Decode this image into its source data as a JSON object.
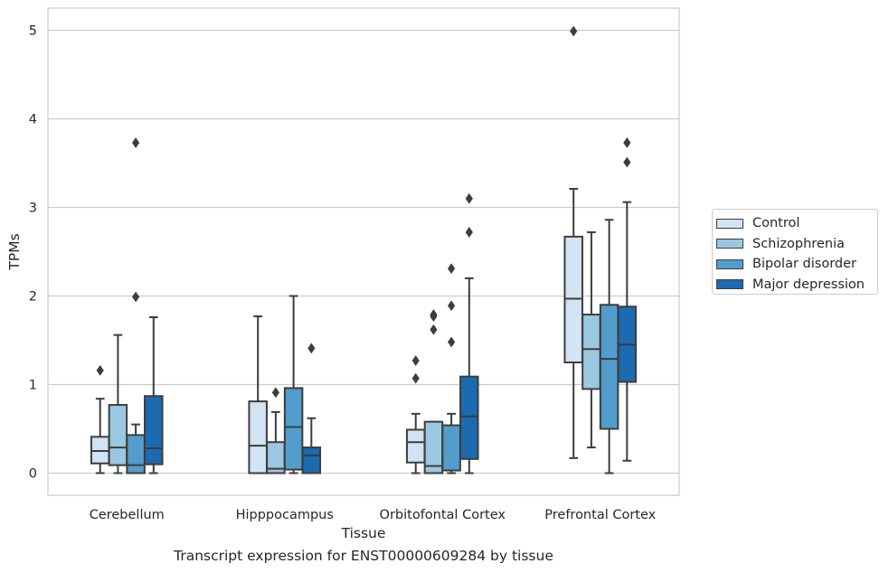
{
  "caption": "Transcript expression for ENST00000609284 by tissue",
  "legend": {
    "items": [
      {
        "label": "Control",
        "color": "#d2e3f3"
      },
      {
        "label": "Schizophrenia",
        "color": "#9ac8e0"
      },
      {
        "label": "Bipolar disorder",
        "color": "#529dcc"
      },
      {
        "label": "Major depression",
        "color": "#1c6aaf"
      }
    ]
  },
  "chart_data": {
    "type": "box",
    "title": "",
    "xlabel": "Tissue",
    "ylabel": "TPMs",
    "categories": [
      "Cerebellum",
      "Hipppocampus",
      "Orbitofontal Cortex",
      "Prefrontal Cortex"
    ],
    "ylim": [
      -0.25,
      5.25
    ],
    "yticks": [
      0,
      1,
      2,
      3,
      4,
      5
    ],
    "grid": "horizontal",
    "legend_position": "right",
    "series": [
      {
        "name": "Control",
        "color": "#d2e3f3",
        "boxes": [
          {
            "whisker_low": 0.0,
            "q1": 0.11,
            "median": 0.25,
            "q3": 0.41,
            "whisker_high": 0.84,
            "outliers": [
              1.16
            ]
          },
          {
            "whisker_low": 0.0,
            "q1": 0.0,
            "median": 0.31,
            "q3": 0.81,
            "whisker_high": 1.77,
            "outliers": []
          },
          {
            "whisker_low": 0.0,
            "q1": 0.12,
            "median": 0.35,
            "q3": 0.49,
            "whisker_high": 0.67,
            "outliers": [
              1.07,
              1.27
            ]
          },
          {
            "whisker_low": 0.17,
            "q1": 1.25,
            "median": 1.97,
            "q3": 2.67,
            "whisker_high": 3.21,
            "outliers": [
              4.99
            ]
          }
        ]
      },
      {
        "name": "Schizophrenia",
        "color": "#9ac8e0",
        "boxes": [
          {
            "whisker_low": 0.0,
            "q1": 0.09,
            "median": 0.29,
            "q3": 0.77,
            "whisker_high": 1.56,
            "outliers": []
          },
          {
            "whisker_low": 0.0,
            "q1": 0.0,
            "median": 0.05,
            "q3": 0.35,
            "whisker_high": 0.69,
            "outliers": [
              0.91
            ]
          },
          {
            "whisker_low": 0.0,
            "q1": 0.0,
            "median": 0.08,
            "q3": 0.58,
            "whisker_high": 0.58,
            "outliers": [
              1.62,
              1.77,
              1.79
            ]
          },
          {
            "whisker_low": 0.29,
            "q1": 0.95,
            "median": 1.4,
            "q3": 1.79,
            "whisker_high": 2.72,
            "outliers": []
          }
        ]
      },
      {
        "name": "Bipolar disorder",
        "color": "#529dcc",
        "boxes": [
          {
            "whisker_low": 0.0,
            "q1": 0.0,
            "median": 0.09,
            "q3": 0.43,
            "whisker_high": 0.55,
            "outliers": [
              1.99,
              3.73
            ]
          },
          {
            "whisker_low": 0.0,
            "q1": 0.04,
            "median": 0.52,
            "q3": 0.96,
            "whisker_high": 2.0,
            "outliers": []
          },
          {
            "whisker_low": 0.0,
            "q1": 0.03,
            "median": 0.03,
            "q3": 0.54,
            "whisker_high": 0.67,
            "outliers": [
              1.48,
              1.89,
              2.31
            ]
          },
          {
            "whisker_low": 0.0,
            "q1": 0.5,
            "median": 1.29,
            "q3": 1.9,
            "whisker_high": 2.86,
            "outliers": []
          }
        ]
      },
      {
        "name": "Major depression",
        "color": "#1c6aaf",
        "boxes": [
          {
            "whisker_low": 0.0,
            "q1": 0.1,
            "median": 0.28,
            "q3": 0.87,
            "whisker_high": 1.76,
            "outliers": []
          },
          {
            "whisker_low": 0.0,
            "q1": 0.0,
            "median": 0.2,
            "q3": 0.29,
            "whisker_high": 0.62,
            "outliers": [
              1.41
            ]
          },
          {
            "whisker_low": 0.0,
            "q1": 0.16,
            "median": 0.64,
            "q3": 1.09,
            "whisker_high": 2.2,
            "outliers": [
              2.72,
              3.1
            ]
          },
          {
            "whisker_low": 0.14,
            "q1": 1.03,
            "median": 1.45,
            "q3": 1.88,
            "whisker_high": 3.06,
            "outliers": [
              3.51,
              3.73
            ]
          }
        ]
      }
    ]
  }
}
